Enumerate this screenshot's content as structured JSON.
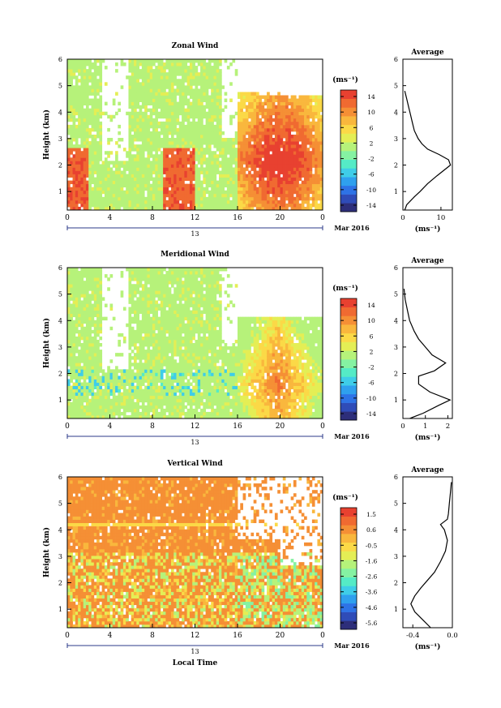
{
  "figure": {
    "date_label": "Mar 2016",
    "day_label": "13",
    "x_axis_title": "Local Time"
  },
  "chart_data": [
    {
      "type": "heatmap",
      "title": "Zonal Wind",
      "xlabel": "",
      "ylabel": "Height (km)",
      "x_ticks": [
        "0",
        "4",
        "8",
        "12",
        "16",
        "20",
        "0"
      ],
      "y_ticks": [
        "1",
        "2",
        "3",
        "4",
        "5",
        "6"
      ],
      "xlim": [
        0,
        24
      ],
      "ylim": [
        0.3,
        6
      ],
      "colorbar": {
        "unit": "(ms⁻¹)",
        "ticks": [
          "14",
          "10",
          "6",
          "2",
          "-2",
          "-6",
          "-10",
          "-14"
        ],
        "range": [
          -16,
          16
        ]
      },
      "profile": {
        "title": "Average",
        "xlabel": "(ms⁻¹)",
        "x_ticks": [
          "0",
          "10"
        ],
        "xlim": [
          0,
          13
        ],
        "y_ticks": [
          "1",
          "2",
          "3",
          "4",
          "5",
          "6"
        ],
        "heights": [
          0.3,
          0.5,
          0.8,
          1.0,
          1.3,
          1.6,
          2.0,
          2.2,
          2.4,
          2.6,
          2.8,
          3.0,
          3.3,
          3.6,
          3.9,
          4.2,
          4.5,
          4.8
        ],
        "values": [
          0.5,
          1.0,
          3.0,
          4.5,
          6.5,
          9.0,
          12.5,
          12.0,
          9.5,
          6.5,
          5.0,
          4.0,
          3.0,
          2.5,
          2.0,
          1.5,
          1.0,
          0.5
        ]
      }
    },
    {
      "type": "heatmap",
      "title": "Meridional Wind",
      "xlabel": "",
      "ylabel": "Height (km)",
      "x_ticks": [
        "0",
        "4",
        "8",
        "12",
        "16",
        "20",
        "0"
      ],
      "y_ticks": [
        "1",
        "2",
        "3",
        "4",
        "5",
        "6"
      ],
      "xlim": [
        0,
        24
      ],
      "ylim": [
        0.3,
        6
      ],
      "colorbar": {
        "unit": "(ms⁻¹)",
        "ticks": [
          "14",
          "10",
          "6",
          "2",
          "-2",
          "-6",
          "-10",
          "-14"
        ],
        "range": [
          -16,
          16
        ]
      },
      "profile": {
        "title": "Average",
        "xlabel": "(ms⁻¹)",
        "x_ticks": [
          "0",
          "1",
          "2"
        ],
        "xlim": [
          0,
          2.2
        ],
        "y_ticks": [
          "1",
          "2",
          "3",
          "4",
          "5",
          "6"
        ],
        "heights": [
          0.3,
          0.5,
          0.8,
          1.0,
          1.3,
          1.6,
          1.9,
          2.1,
          2.4,
          2.7,
          3.0,
          3.3,
          3.6,
          4.0,
          4.4,
          4.8,
          5.2
        ],
        "values": [
          0.3,
          0.9,
          1.6,
          2.1,
          1.2,
          0.7,
          0.7,
          1.4,
          1.9,
          1.3,
          1.0,
          0.7,
          0.5,
          0.3,
          0.2,
          0.1,
          0.05
        ]
      }
    },
    {
      "type": "heatmap",
      "title": "Vertical Wind",
      "xlabel": "Local Time",
      "ylabel": "Height (km)",
      "x_ticks": [
        "0",
        "4",
        "8",
        "12",
        "16",
        "20",
        "0"
      ],
      "y_ticks": [
        "1",
        "2",
        "3",
        "4",
        "5",
        "6"
      ],
      "xlim": [
        0,
        24
      ],
      "ylim": [
        0.3,
        6
      ],
      "colorbar": {
        "unit": "(ms⁻¹)",
        "ticks": [
          "1.5",
          "0.6",
          "-0.5",
          "-1.6",
          "-2.6",
          "-3.6",
          "-4.6",
          "-5.6"
        ],
        "range": [
          -6.1,
          2.0
        ]
      },
      "profile": {
        "title": "Average",
        "xlabel": "(ms⁻¹)",
        "x_ticks": [
          "-0.4",
          "0.0"
        ],
        "xlim": [
          -0.5,
          0.0
        ],
        "y_ticks": [
          "1",
          "2",
          "3",
          "4",
          "5",
          "6"
        ],
        "heights": [
          0.3,
          0.6,
          0.9,
          1.2,
          1.5,
          1.8,
          2.1,
          2.4,
          2.8,
          3.2,
          3.6,
          4.0,
          4.2,
          4.4,
          4.6,
          5.0,
          5.4,
          5.8
        ],
        "values": [
          -0.22,
          -0.3,
          -0.38,
          -0.42,
          -0.38,
          -0.32,
          -0.25,
          -0.18,
          -0.12,
          -0.07,
          -0.05,
          -0.08,
          -0.12,
          -0.05,
          -0.04,
          -0.03,
          -0.02,
          -0.01
        ]
      }
    }
  ]
}
